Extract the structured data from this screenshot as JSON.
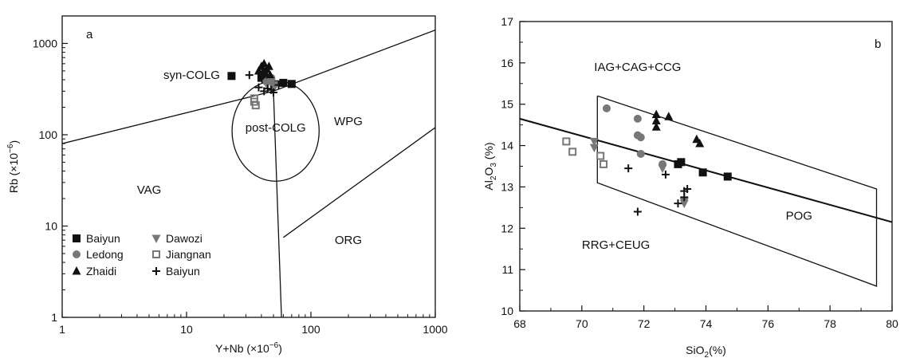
{
  "chart_data": [
    {
      "type": "scatter",
      "panel_label": "a",
      "xlabel": "Y+Nb (×10",
      "xlabel_sup": "−6",
      "xlabel_end": ")",
      "ylabel": "Rb (×10",
      "ylabel_sup": "−6",
      "ylabel_end": ")",
      "xscale": "log",
      "yscale": "log",
      "xlim": [
        1,
        1000
      ],
      "ylim": [
        1,
        2000
      ],
      "x_ticks": [
        1,
        10,
        100,
        1000
      ],
      "y_ticks": [
        1,
        10,
        100,
        1000
      ],
      "x_tick_labels": [
        "1",
        "10",
        "100",
        "1000"
      ],
      "y_tick_labels": [
        "1",
        "10",
        "100",
        "1000"
      ],
      "grid": false,
      "legend_position": "bottom-left",
      "fields": [
        {
          "name": "syn-COLG",
          "x": 11,
          "y": 450
        },
        {
          "name": "post-COLG",
          "x": 52,
          "y": 120
        },
        {
          "name": "WPG",
          "x": 200,
          "y": 140
        },
        {
          "name": "VAG",
          "x": 5,
          "y": 25
        },
        {
          "name": "ORG",
          "x": 200,
          "y": 7
        }
      ],
      "boundaries": [
        {
          "points": [
            [
              1,
              80
            ],
            [
              50,
              300
            ]
          ]
        },
        {
          "points": [
            [
              50,
              300
            ],
            [
              58,
              1
            ],
            [
              58,
              1
            ]
          ]
        },
        {
          "points": [
            [
              50,
              300
            ],
            [
              2000,
              2000
            ]
          ]
        },
        {
          "points": [
            [
              60,
              7.5
            ],
            [
              1000,
              120
            ]
          ]
        }
      ],
      "circle": {
        "cx": 52,
        "cy": 110,
        "rx_log": 0.35,
        "ry_log": 0.55
      },
      "series": [
        {
          "name": "Baiyun",
          "marker": "square-filled",
          "color": "#111111",
          "points": [
            [
              23,
              440
            ],
            [
              40,
              420
            ],
            [
              43,
              400
            ],
            [
              60,
              370
            ],
            [
              70,
              360
            ]
          ]
        },
        {
          "name": "Ledong",
          "marker": "circle-filled",
          "color": "#777777",
          "points": [
            [
              44,
              380
            ],
            [
              46,
              400
            ],
            [
              50,
              350
            ],
            [
              48,
              420
            ],
            [
              45,
              390
            ]
          ]
        },
        {
          "name": "Zhaidi",
          "marker": "triangle-up-filled",
          "color": "#111111",
          "points": [
            [
              38,
              500
            ],
            [
              40,
              560
            ],
            [
              42,
              600
            ],
            [
              44,
              520
            ],
            [
              46,
              560
            ],
            [
              41,
              480
            ],
            [
              43,
              470
            ],
            [
              47,
              450
            ]
          ]
        },
        {
          "name": "Dawozi",
          "marker": "triangle-down-filled",
          "color": "#777777",
          "points": [
            [
              48,
              380
            ],
            [
              52,
              350
            ],
            [
              44,
              360
            ]
          ]
        },
        {
          "name": "Jiangnan",
          "marker": "square-open",
          "color": "#777777",
          "points": [
            [
              35,
              250
            ],
            [
              35,
              230
            ],
            [
              36,
              210
            ]
          ]
        },
        {
          "name": "Baiyun",
          "marker": "plus",
          "color": "#111111",
          "points": [
            [
              32,
              450
            ],
            [
              38,
              330
            ],
            [
              42,
              300
            ],
            [
              45,
              320
            ],
            [
              48,
              310
            ],
            [
              55,
              350
            ],
            [
              50,
              290
            ]
          ]
        }
      ]
    },
    {
      "type": "scatter",
      "panel_label": "b",
      "xlabel": "SiO",
      "xlabel_sub": "2",
      "xlabel_end": "(%)",
      "ylabel": "Al",
      "ylabel_sub1": "2",
      "ylabel_mid": "O",
      "ylabel_sub2": "3",
      "ylabel_end": " (%)",
      "xlim": [
        68,
        80
      ],
      "ylim": [
        10,
        17
      ],
      "x_ticks": [
        68,
        70,
        72,
        74,
        76,
        78,
        80
      ],
      "y_ticks": [
        10,
        11,
        12,
        13,
        14,
        15,
        16,
        17
      ],
      "x_tick_labels": [
        "68",
        "70",
        "72",
        "74",
        "76",
        "78",
        "80"
      ],
      "y_tick_labels": [
        "10",
        "11",
        "12",
        "13",
        "14",
        "15",
        "16",
        "17"
      ],
      "grid": false,
      "fields": [
        {
          "name": "IAG+CAG+CCG",
          "x": 71.8,
          "y": 15.9
        },
        {
          "name": "RRG+CEUG",
          "x": 71.1,
          "y": 11.6
        },
        {
          "name": "POG",
          "x": 77.0,
          "y": 12.3
        }
      ],
      "boundaries": [
        {
          "points": [
            [
              68,
              14.65
            ],
            [
              80,
              12.15
            ]
          ]
        },
        {
          "points": [
            [
              70.5,
              15.2
            ],
            [
              79.5,
              12.95
            ],
            [
              79.5,
              10.6
            ],
            [
              70.5,
              13.1
            ],
            [
              70.5,
              15.2
            ]
          ]
        }
      ],
      "series": [
        {
          "name": "Baiyun",
          "marker": "square-filled",
          "color": "#111111",
          "points": [
            [
              73.1,
              13.55
            ],
            [
              73.2,
              13.6
            ],
            [
              73.9,
              13.35
            ],
            [
              74.7,
              13.25
            ]
          ]
        },
        {
          "name": "Ledong",
          "marker": "circle-filled",
          "color": "#777777",
          "points": [
            [
              70.8,
              14.9
            ],
            [
              71.8,
              14.65
            ],
            [
              71.8,
              14.25
            ],
            [
              71.9,
              14.2
            ],
            [
              71.9,
              13.8
            ],
            [
              72.6,
              13.55
            ]
          ]
        },
        {
          "name": "Zhaidi",
          "marker": "triangle-up-filled",
          "color": "#111111",
          "points": [
            [
              72.4,
              14.75
            ],
            [
              72.4,
              14.6
            ],
            [
              72.4,
              14.45
            ],
            [
              72.8,
              14.7
            ],
            [
              73.7,
              14.15
            ],
            [
              73.8,
              14.05
            ]
          ]
        },
        {
          "name": "Dawozi",
          "marker": "triangle-down-filled",
          "color": "#777777",
          "points": [
            [
              70.4,
              14.1
            ],
            [
              70.4,
              13.95
            ],
            [
              72.6,
              13.45
            ],
            [
              73.3,
              12.65
            ],
            [
              73.3,
              12.6
            ]
          ]
        },
        {
          "name": "Jiangnan",
          "marker": "square-open",
          "color": "#777777",
          "points": [
            [
              69.5,
              14.1
            ],
            [
              69.7,
              13.85
            ],
            [
              70.6,
              13.75
            ],
            [
              70.7,
              13.55
            ]
          ]
        },
        {
          "name": "Baiyun",
          "marker": "plus",
          "color": "#111111",
          "points": [
            [
              71.5,
              13.45
            ],
            [
              71.8,
              12.4
            ],
            [
              72.7,
              13.3
            ],
            [
              73.3,
              12.9
            ],
            [
              73.4,
              12.95
            ],
            [
              73.1,
              12.6
            ],
            [
              73.3,
              12.75
            ]
          ]
        }
      ]
    }
  ],
  "legend": [
    {
      "label": "Baiyun",
      "marker": "square-filled",
      "color": "#111111"
    },
    {
      "label": "Dawozi",
      "marker": "triangle-down-filled",
      "color": "#777777"
    },
    {
      "label": "Ledong",
      "marker": "circle-filled",
      "color": "#777777"
    },
    {
      "label": "Jiangnan",
      "marker": "square-open",
      "color": "#777777"
    },
    {
      "label": "Zhaidi",
      "marker": "triangle-up-filled",
      "color": "#111111"
    },
    {
      "label": "Baiyun",
      "marker": "plus",
      "color": "#111111"
    }
  ]
}
